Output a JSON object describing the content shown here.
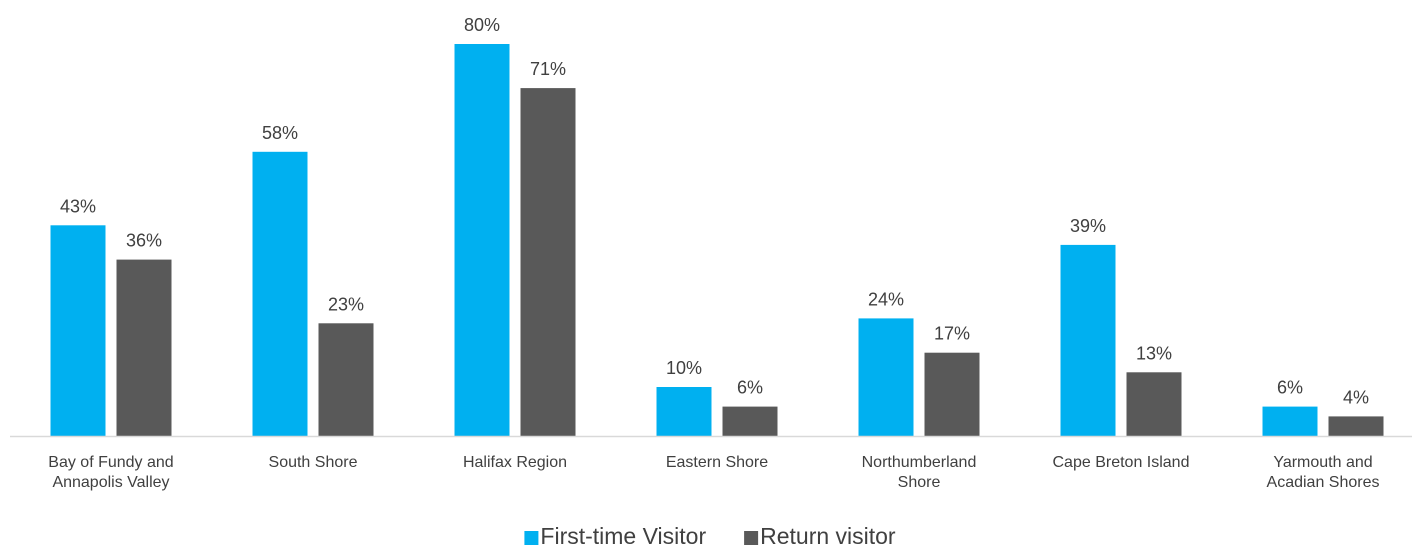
{
  "chart_data": {
    "type": "bar",
    "categories": [
      "Bay of Fundy and\nAnnapolis Valley",
      "South Shore",
      "Halifax Region",
      "Eastern Shore",
      "Northumberland\nShore",
      "Cape Breton Island",
      "Yarmouth and\nAcadian Shores"
    ],
    "series": [
      {
        "name": "First-time Visitor",
        "color": "#00b0f0",
        "values": [
          43,
          58,
          80,
          10,
          24,
          39,
          6
        ],
        "value_labels": [
          "43%",
          "58%",
          "80%",
          "10%",
          "24%",
          "39%",
          "6%"
        ]
      },
      {
        "name": "Return visitor",
        "color": "#595959",
        "values": [
          36,
          23,
          71,
          6,
          17,
          13,
          4
        ],
        "value_labels": [
          "36%",
          "23%",
          "71%",
          "6%",
          "17%",
          "13%",
          "4%"
        ]
      }
    ],
    "legend": "bottom"
  }
}
